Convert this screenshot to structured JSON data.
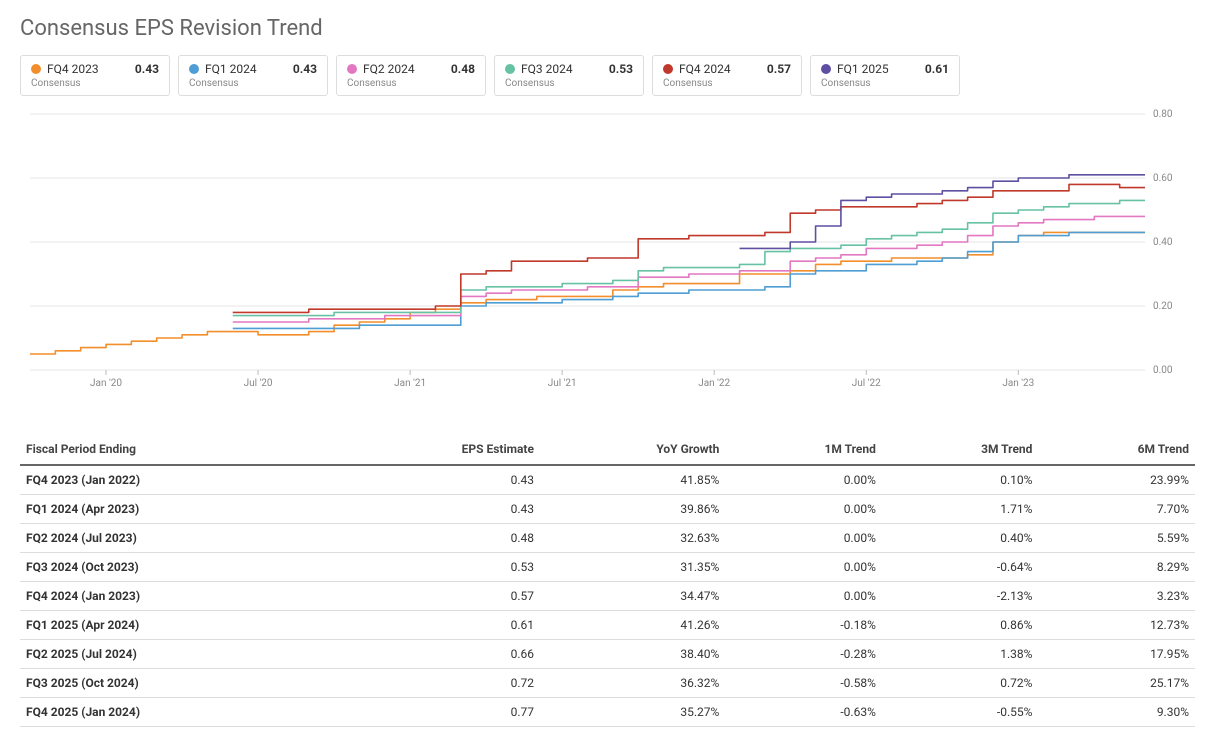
{
  "title": "Consensus EPS Revision Trend",
  "legend": {
    "sub_label": "Consensus",
    "items": [
      {
        "label": "FQ4 2023",
        "value": "0.43",
        "color": "#f28e2b"
      },
      {
        "label": "FQ1 2024",
        "value": "0.43",
        "color": "#4e9dd4"
      },
      {
        "label": "FQ2 2024",
        "value": "0.48",
        "color": "#e377c2"
      },
      {
        "label": "FQ3 2024",
        "value": "0.53",
        "color": "#67c2a5"
      },
      {
        "label": "FQ4 2024",
        "value": "0.57",
        "color": "#c0392b"
      },
      {
        "label": "FQ1 2025",
        "value": "0.61",
        "color": "#5e4fa2"
      }
    ]
  },
  "chart": {
    "type": "step-line",
    "x_start_index": 0,
    "x_end_index": 44,
    "x_ticks": [
      {
        "i": 3,
        "label": "Jan '20"
      },
      {
        "i": 9,
        "label": "Jul '20"
      },
      {
        "i": 15,
        "label": "Jan '21"
      },
      {
        "i": 21,
        "label": "Jul '21"
      },
      {
        "i": 27,
        "label": "Jan '22"
      },
      {
        "i": 33,
        "label": "Jul '22"
      },
      {
        "i": 39,
        "label": "Jan '23"
      }
    ],
    "y_min": 0.0,
    "y_max": 0.8,
    "y_ticks": [
      {
        "v": 0.0,
        "label": "0.00"
      },
      {
        "v": 0.2,
        "label": "0.20"
      },
      {
        "v": 0.4,
        "label": "0.40"
      },
      {
        "v": 0.6,
        "label": "0.60"
      },
      {
        "v": 0.8,
        "label": "0.80"
      }
    ],
    "grid_color": "#e6e6e6",
    "axis_text_color": "#888",
    "background_color": "#ffffff",
    "line_width": 1.6,
    "series": [
      {
        "name": "FQ4 2023",
        "color": "#f28e2b",
        "start": 0,
        "values": [
          0.05,
          0.06,
          0.07,
          0.08,
          0.09,
          0.1,
          0.11,
          0.12,
          0.12,
          0.11,
          0.11,
          0.12,
          0.14,
          0.15,
          0.16,
          0.18,
          0.19,
          0.21,
          0.22,
          0.22,
          0.23,
          0.23,
          0.23,
          0.25,
          0.26,
          0.27,
          0.27,
          0.27,
          0.3,
          0.3,
          0.31,
          0.33,
          0.34,
          0.34,
          0.35,
          0.35,
          0.35,
          0.36,
          0.4,
          0.42,
          0.43,
          0.43,
          0.43,
          0.43,
          0.43
        ]
      },
      {
        "name": "FQ1 2024",
        "color": "#4e9dd4",
        "start": 8,
        "values": [
          0.13,
          0.13,
          0.13,
          0.13,
          0.13,
          0.14,
          0.14,
          0.14,
          0.14,
          0.2,
          0.21,
          0.21,
          0.21,
          0.22,
          0.22,
          0.23,
          0.24,
          0.24,
          0.25,
          0.25,
          0.25,
          0.26,
          0.3,
          0.31,
          0.31,
          0.33,
          0.33,
          0.34,
          0.35,
          0.37,
          0.4,
          0.42,
          0.42,
          0.43,
          0.43,
          0.43,
          0.43
        ]
      },
      {
        "name": "FQ2 2024",
        "color": "#e377c2",
        "start": 8,
        "values": [
          0.15,
          0.15,
          0.15,
          0.16,
          0.16,
          0.16,
          0.17,
          0.17,
          0.17,
          0.23,
          0.24,
          0.25,
          0.25,
          0.25,
          0.26,
          0.26,
          0.29,
          0.29,
          0.3,
          0.3,
          0.31,
          0.31,
          0.34,
          0.35,
          0.36,
          0.38,
          0.38,
          0.39,
          0.4,
          0.42,
          0.45,
          0.46,
          0.47,
          0.47,
          0.48,
          0.48,
          0.48
        ]
      },
      {
        "name": "FQ3 2024",
        "color": "#67c2a5",
        "start": 8,
        "values": [
          0.17,
          0.17,
          0.17,
          0.17,
          0.18,
          0.18,
          0.18,
          0.18,
          0.18,
          0.25,
          0.26,
          0.26,
          0.26,
          0.27,
          0.27,
          0.28,
          0.31,
          0.32,
          0.32,
          0.32,
          0.33,
          0.37,
          0.38,
          0.38,
          0.39,
          0.41,
          0.42,
          0.43,
          0.44,
          0.46,
          0.49,
          0.5,
          0.51,
          0.52,
          0.52,
          0.53,
          0.53
        ]
      },
      {
        "name": "FQ4 2024",
        "color": "#c0392b",
        "start": 8,
        "values": [
          0.18,
          0.18,
          0.18,
          0.19,
          0.19,
          0.19,
          0.19,
          0.19,
          0.2,
          0.3,
          0.31,
          0.34,
          0.34,
          0.34,
          0.35,
          0.35,
          0.41,
          0.41,
          0.42,
          0.42,
          0.42,
          0.43,
          0.49,
          0.5,
          0.51,
          0.51,
          0.51,
          0.52,
          0.53,
          0.54,
          0.56,
          0.56,
          0.56,
          0.58,
          0.58,
          0.57,
          0.57
        ]
      },
      {
        "name": "FQ1 2025",
        "color": "#5e4fa2",
        "start": 28,
        "values": [
          0.38,
          0.38,
          0.4,
          0.45,
          0.53,
          0.54,
          0.55,
          0.55,
          0.56,
          0.57,
          0.59,
          0.6,
          0.6,
          0.61,
          0.61,
          0.61,
          0.61
        ]
      }
    ]
  },
  "table": {
    "columns": [
      "Fiscal Period Ending",
      "EPS Estimate",
      "YoY Growth",
      "1M Trend",
      "3M Trend",
      "6M Trend"
    ],
    "rows": [
      {
        "period": "FQ4 2023 (Jan 2022)",
        "eps": "0.43",
        "yoy": "41.85%",
        "m1": {
          "v": "0.00%",
          "pos": true
        },
        "m3": {
          "v": "0.10%",
          "pos": true
        },
        "m6": {
          "v": "23.99%",
          "pos": true
        }
      },
      {
        "period": "FQ1 2024 (Apr 2023)",
        "eps": "0.43",
        "yoy": "39.86%",
        "m1": {
          "v": "0.00%",
          "pos": true
        },
        "m3": {
          "v": "1.71%",
          "pos": true
        },
        "m6": {
          "v": "7.70%",
          "pos": true
        }
      },
      {
        "period": "FQ2 2024 (Jul 2023)",
        "eps": "0.48",
        "yoy": "32.63%",
        "m1": {
          "v": "0.00%",
          "pos": true
        },
        "m3": {
          "v": "0.40%",
          "pos": true
        },
        "m6": {
          "v": "5.59%",
          "pos": true
        }
      },
      {
        "period": "FQ3 2024 (Oct 2023)",
        "eps": "0.53",
        "yoy": "31.35%",
        "m1": {
          "v": "0.00%",
          "pos": true
        },
        "m3": {
          "v": "-0.64%",
          "pos": false
        },
        "m6": {
          "v": "8.29%",
          "pos": true
        }
      },
      {
        "period": "FQ4 2024 (Jan 2023)",
        "eps": "0.57",
        "yoy": "34.47%",
        "m1": {
          "v": "0.00%",
          "pos": true
        },
        "m3": {
          "v": "-2.13%",
          "pos": false
        },
        "m6": {
          "v": "3.23%",
          "pos": true
        }
      },
      {
        "period": "FQ1 2025 (Apr 2024)",
        "eps": "0.61",
        "yoy": "41.26%",
        "m1": {
          "v": "-0.18%",
          "pos": false
        },
        "m3": {
          "v": "0.86%",
          "pos": true
        },
        "m6": {
          "v": "12.73%",
          "pos": true
        }
      },
      {
        "period": "FQ2 2025 (Jul 2024)",
        "eps": "0.66",
        "yoy": "38.40%",
        "m1": {
          "v": "-0.28%",
          "pos": false
        },
        "m3": {
          "v": "1.38%",
          "pos": true
        },
        "m6": {
          "v": "17.95%",
          "pos": true
        }
      },
      {
        "period": "FQ3 2025 (Oct 2024)",
        "eps": "0.72",
        "yoy": "36.32%",
        "m1": {
          "v": "-0.58%",
          "pos": false
        },
        "m3": {
          "v": "0.72%",
          "pos": true
        },
        "m6": {
          "v": "25.17%",
          "pos": true
        }
      },
      {
        "period": "FQ4 2025 (Jan 2024)",
        "eps": "0.77",
        "yoy": "35.27%",
        "m1": {
          "v": "-0.63%",
          "pos": false
        },
        "m3": {
          "v": "-0.55%",
          "pos": false
        },
        "m6": {
          "v": "9.30%",
          "pos": true
        }
      }
    ]
  }
}
